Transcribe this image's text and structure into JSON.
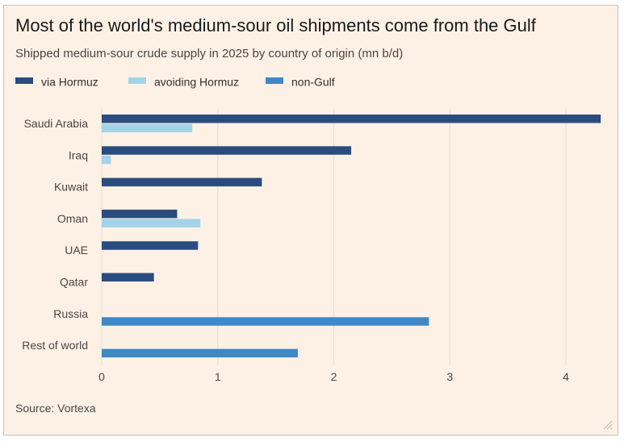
{
  "title": "Most of the world's medium-sour oil shipments come from the Gulf",
  "subtitle": "Shipped medium-sour crude supply in 2025 by country of origin (mn b/d)",
  "source": "Source: Vortexa",
  "colors": {
    "via_hormuz": "#2b4c7e",
    "avoiding_hormuz": "#a4d3e8",
    "non_gulf": "#3f88c5",
    "background": "#fdf1e6",
    "grid": "#e8ddd2",
    "axis_text": "#4a4644"
  },
  "icons": {
    "resize": "resize-grip-icon"
  },
  "chart_data": {
    "type": "bar",
    "orientation": "horizontal",
    "categories": [
      "Saudi Arabia",
      "Iraq",
      "Kuwait",
      "Oman",
      "UAE",
      "Qatar",
      "Russia",
      "Rest of world"
    ],
    "series": [
      {
        "name": "via Hormuz",
        "color": "#2b4c7e",
        "values": [
          4.3,
          2.15,
          1.38,
          0.65,
          0.83,
          0.45,
          0,
          0
        ]
      },
      {
        "name": "avoiding Hormuz",
        "color": "#a4d3e8",
        "values": [
          0.78,
          0.08,
          0,
          0.85,
          0,
          0,
          0,
          0
        ]
      },
      {
        "name": "non-Gulf",
        "color": "#3f88c5",
        "values": [
          0,
          0,
          0,
          0,
          0,
          0,
          2.82,
          1.69
        ]
      }
    ],
    "xlim": [
      0,
      4.32
    ],
    "xticks": [
      "0",
      "1",
      "2",
      "3",
      "4"
    ],
    "grid": true,
    "legend": "top-left"
  }
}
